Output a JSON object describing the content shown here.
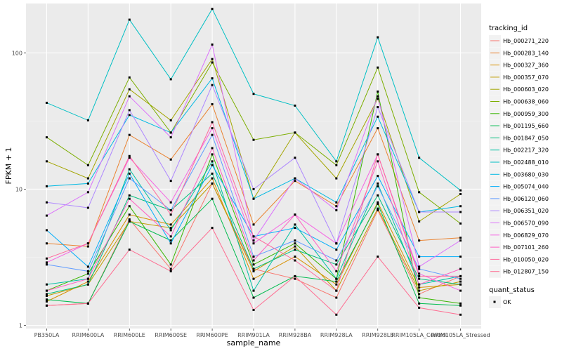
{
  "chart_data": {
    "type": "line",
    "xlabel": "sample_name",
    "ylabel": "FPKM + 1",
    "y_scale": "log10",
    "ylim": [
      0.95,
      230
    ],
    "y_ticks": [
      1,
      10,
      100
    ],
    "y_tick_labels": [
      "1",
      "10",
      "100"
    ],
    "grid": true,
    "legend_position": "right",
    "categories": [
      "PB350LA",
      "RRIM600LA",
      "RRIM600LE",
      "RRIM600SE",
      "RRIM600PE",
      "RRIM901LA",
      "RRIM928BA",
      "RRIM928LA",
      "RRIM928LE",
      "RRIM105LA_Control",
      "RRIM105LA_Stressed"
    ],
    "category_labels": [
      "PB350LA",
      "RRIM600LA",
      "RRIM600LE",
      "RRIM600SE",
      "RRIM600PE",
      "RRIM901LA",
      "RRIM928BA",
      "RRIM928LA",
      "RRIM928LE",
      "RRIM105LA_Control",
      "RRIM105LA_Stressed"
    ],
    "legend_title": "tracking_id",
    "series": [
      {
        "name": "Hb_000271_220",
        "color": "#F8766D",
        "values": [
          1.4,
          1.45,
          6.0,
          2.6,
          11.0,
          2.6,
          2.2,
          1.6,
          7.0,
          1.7,
          2.3
        ]
      },
      {
        "name": "Hb_000283_140",
        "color": "#EA8331",
        "values": [
          4.0,
          3.8,
          25.0,
          16.5,
          42.0,
          5.5,
          11.5,
          7.5,
          28.0,
          4.2,
          4.4
        ]
      },
      {
        "name": "Hb_000327_360",
        "color": "#D89000",
        "values": [
          1.5,
          2.1,
          6.5,
          5.5,
          12.0,
          2.2,
          3.2,
          2.0,
          8.0,
          1.9,
          2.0
        ]
      },
      {
        "name": "Hb_000357_070",
        "color": "#C09B00",
        "values": [
          1.65,
          2.0,
          5.8,
          5.2,
          11.0,
          2.5,
          3.8,
          1.8,
          7.2,
          1.8,
          2.1
        ]
      },
      {
        "name": "Hb_000603_020",
        "color": "#A3A500",
        "values": [
          16.0,
          12.0,
          54.0,
          32.0,
          90.0,
          8.5,
          26.0,
          12.0,
          46.0,
          5.8,
          9.2
        ]
      },
      {
        "name": "Hb_000638_060",
        "color": "#7CAE00",
        "values": [
          24.0,
          15.0,
          66.0,
          26.0,
          85.0,
          23.0,
          26.0,
          15.0,
          78.0,
          9.5,
          5.6
        ]
      },
      {
        "name": "Hb_000959_300",
        "color": "#39B600",
        "values": [
          1.8,
          2.4,
          7.5,
          2.8,
          18.0,
          2.8,
          4.0,
          2.2,
          52.0,
          1.6,
          1.45
        ]
      },
      {
        "name": "Hb_001195_660",
        "color": "#00BB4E",
        "values": [
          1.55,
          1.45,
          5.8,
          4.2,
          8.5,
          1.6,
          2.3,
          2.1,
          7.8,
          1.45,
          1.4
        ]
      },
      {
        "name": "Hb_001847_050",
        "color": "#00BF7D",
        "values": [
          1.7,
          2.0,
          9.0,
          7.0,
          13.0,
          2.6,
          3.6,
          2.8,
          9.0,
          2.2,
          2.0
        ]
      },
      {
        "name": "Hb_002217_320",
        "color": "#00C1A3",
        "values": [
          2.0,
          2.2,
          14.0,
          5.0,
          16.0,
          1.8,
          5.5,
          2.2,
          11.0,
          2.0,
          2.3
        ]
      },
      {
        "name": "Hb_002488_010",
        "color": "#00BFC4",
        "values": [
          43.0,
          32.0,
          175.0,
          64.0,
          210.0,
          50.0,
          41.0,
          16.0,
          130.0,
          17.0,
          9.8
        ]
      },
      {
        "name": "Hb_003680_030",
        "color": "#00B9E3",
        "values": [
          10.5,
          11.0,
          35.0,
          26.0,
          65.0,
          8.5,
          12.0,
          8.0,
          34.0,
          6.8,
          7.5
        ]
      },
      {
        "name": "Hb_005074_040",
        "color": "#00ADFA",
        "values": [
          5.0,
          2.7,
          13.0,
          4.0,
          15.0,
          4.5,
          5.2,
          3.6,
          12.5,
          3.2,
          3.2
        ]
      },
      {
        "name": "Hb_006120_060",
        "color": "#619CFF",
        "values": [
          2.8,
          2.5,
          12.0,
          7.0,
          25.0,
          3.2,
          4.2,
          3.0,
          10.5,
          2.6,
          2.2
        ]
      },
      {
        "name": "Hb_006351_020",
        "color": "#AE87FF",
        "values": [
          8.0,
          7.3,
          38.0,
          11.5,
          58.0,
          10.0,
          17.0,
          4.0,
          40.0,
          6.8,
          6.8
        ]
      },
      {
        "name": "Hb_006570_090",
        "color": "#DB72FB",
        "values": [
          6.4,
          9.5,
          48.0,
          24.0,
          115.0,
          4.2,
          12.0,
          7.0,
          48.0,
          2.7,
          4.2
        ]
      },
      {
        "name": "Hb_006829_070",
        "color": "#F564E3",
        "values": [
          2.9,
          4.0,
          17.0,
          8.0,
          28.0,
          4.0,
          6.5,
          4.0,
          18.0,
          2.4,
          1.8
        ]
      },
      {
        "name": "Hb_007101_260",
        "color": "#FF61C3",
        "values": [
          1.8,
          2.2,
          8.5,
          4.5,
          20.0,
          3.0,
          6.5,
          2.5,
          16.0,
          2.0,
          2.6
        ]
      },
      {
        "name": "Hb_010050_020",
        "color": "#FF699C",
        "values": [
          3.1,
          4.0,
          17.5,
          6.5,
          31.0,
          4.5,
          3.0,
          1.8,
          18.0,
          2.3,
          2.3
        ]
      },
      {
        "name": "Hb_012807_150",
        "color": "#FF6C91",
        "values": [
          1.4,
          1.45,
          3.6,
          2.5,
          5.2,
          1.3,
          2.3,
          1.2,
          3.2,
          1.35,
          1.2
        ]
      }
    ],
    "legend2_title": "quant_status",
    "legend2_entries": [
      "OK"
    ]
  }
}
